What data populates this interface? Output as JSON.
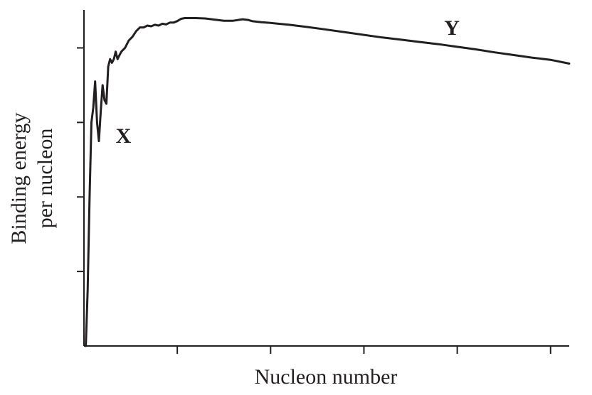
{
  "chart_data": {
    "type": "line",
    "title": "",
    "xlabel": "Nucleon number",
    "ylabel_lines": [
      "Binding energy",
      "per nucleon"
    ],
    "xlim": [
      0,
      260
    ],
    "ylim": [
      0,
      9
    ],
    "x_ticks": [
      50,
      100,
      150,
      200,
      250
    ],
    "y_ticks": [
      2,
      4,
      6,
      8
    ],
    "tick_labels_shown": false,
    "grid": false,
    "series": [
      {
        "x": [
          1,
          2,
          3,
          4,
          5,
          6,
          7,
          8,
          9,
          10,
          11,
          12,
          13,
          14,
          15,
          16,
          17,
          18,
          19,
          20,
          22,
          24,
          26,
          28,
          30,
          32,
          34,
          36,
          38,
          40,
          42,
          44,
          46,
          48,
          50,
          52,
          54,
          56,
          58,
          60,
          65,
          70,
          75,
          80,
          85,
          88,
          90,
          95,
          100,
          110,
          120,
          130,
          140,
          150,
          160,
          170,
          180,
          190,
          200,
          210,
          220,
          230,
          240,
          250,
          260
        ],
        "y": [
          0.0,
          1.5,
          4.0,
          6.0,
          6.4,
          7.1,
          6.0,
          5.5,
          6.3,
          7.0,
          6.6,
          6.5,
          7.5,
          7.7,
          7.6,
          7.7,
          7.9,
          7.7,
          7.8,
          7.9,
          8.0,
          8.2,
          8.3,
          8.45,
          8.55,
          8.55,
          8.6,
          8.58,
          8.62,
          8.6,
          8.65,
          8.63,
          8.68,
          8.68,
          8.72,
          8.78,
          8.8,
          8.8,
          8.8,
          8.8,
          8.79,
          8.76,
          8.73,
          8.73,
          8.77,
          8.75,
          8.72,
          8.69,
          8.67,
          8.62,
          8.56,
          8.49,
          8.42,
          8.35,
          8.28,
          8.22,
          8.16,
          8.1,
          8.03,
          7.96,
          7.88,
          7.81,
          7.74,
          7.68,
          7.58
        ]
      }
    ],
    "annotations": [
      {
        "text": "X",
        "x": 17,
        "y": 5.45
      },
      {
        "text": "Y",
        "x": 193,
        "y": 8.35
      }
    ]
  }
}
